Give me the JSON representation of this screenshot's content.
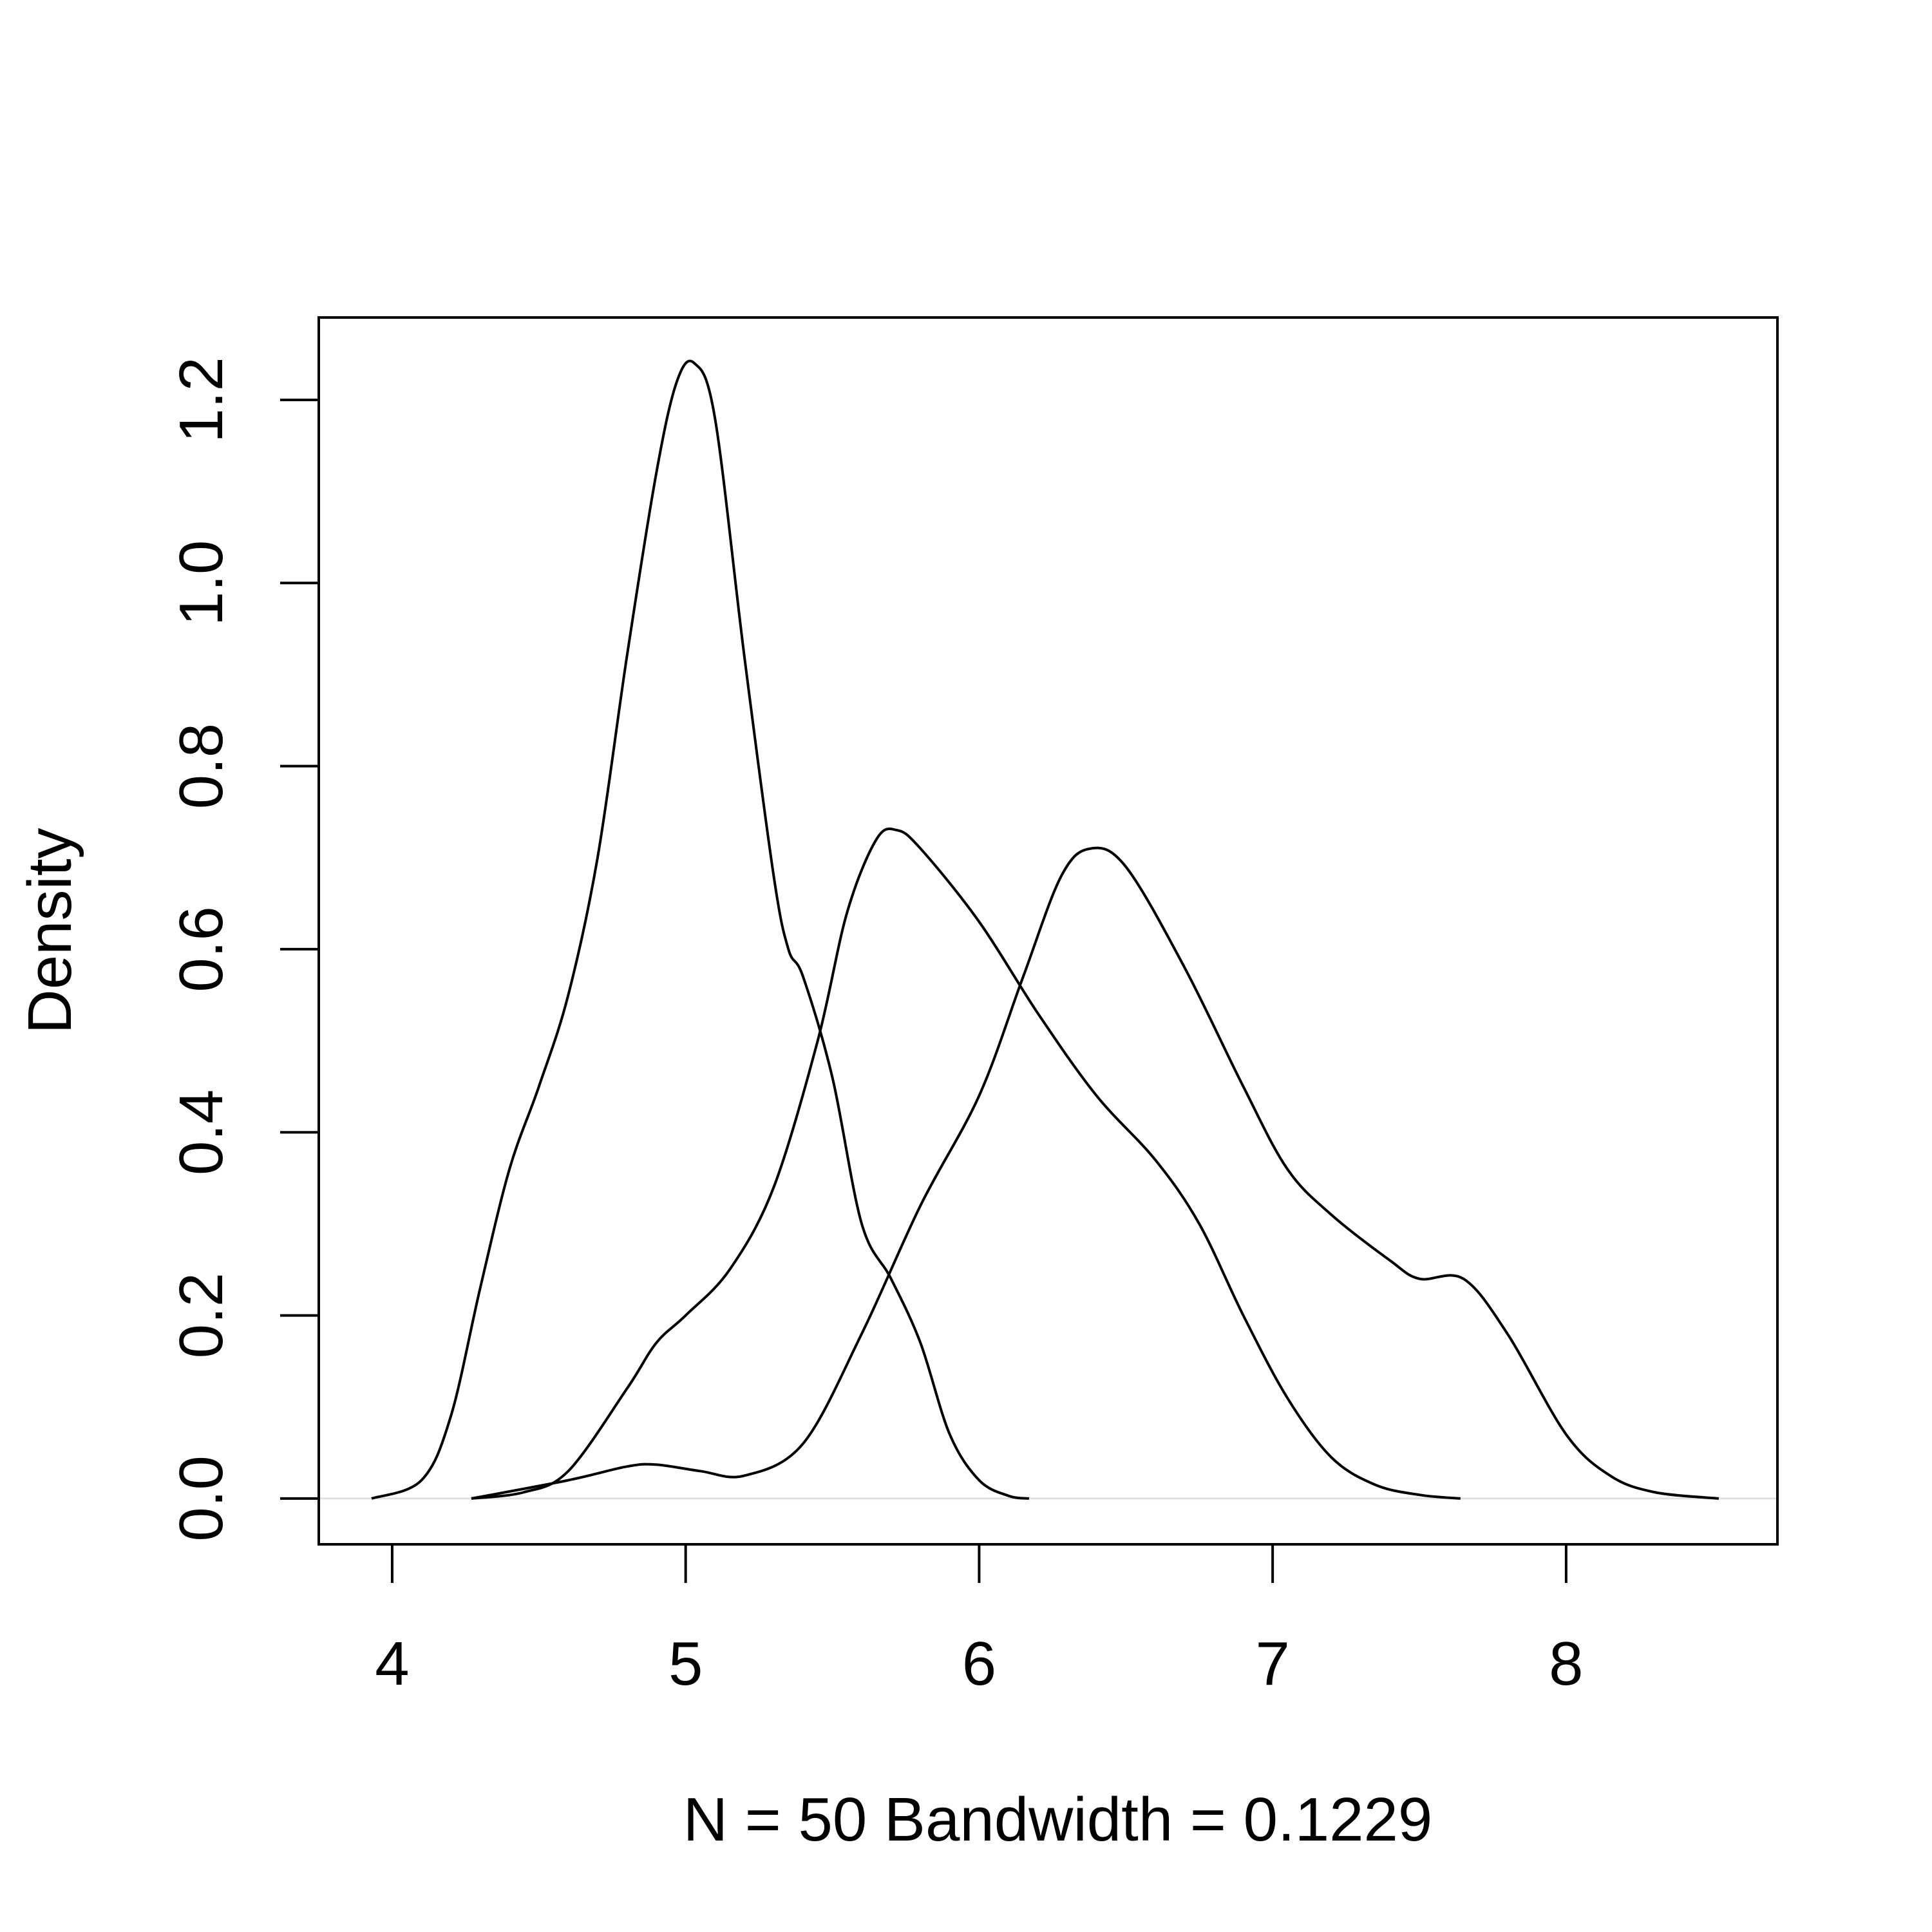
{
  "chart_data": {
    "type": "line",
    "title": "",
    "xlabel": "N = 50   Bandwidth = 0.1229",
    "ylabel": "Density",
    "xlim": [
      3.75,
      8.72
    ],
    "ylim": [
      -0.05,
      1.29
    ],
    "xticks": [
      4,
      5,
      6,
      7,
      8
    ],
    "yticks": [
      0.0,
      0.2,
      0.4,
      0.6,
      0.8,
      1.0,
      1.2
    ],
    "xtick_labels": [
      "4",
      "5",
      "6",
      "7",
      "8"
    ],
    "ytick_labels": [
      "0.0",
      "0.2",
      "0.4",
      "0.6",
      "0.8",
      "1.0",
      "1.2"
    ],
    "grid": false,
    "legend": false,
    "zero_line": true,
    "line_color": "#000000",
    "series": [
      {
        "points": [
          [
            3.93,
            0.0
          ],
          [
            4.1,
            0.02
          ],
          [
            4.2,
            0.09
          ],
          [
            4.3,
            0.23
          ],
          [
            4.4,
            0.36
          ],
          [
            4.5,
            0.45
          ],
          [
            4.6,
            0.55
          ],
          [
            4.7,
            0.7
          ],
          [
            4.8,
            0.92
          ],
          [
            4.9,
            1.12
          ],
          [
            4.97,
            1.22
          ],
          [
            5.03,
            1.24
          ],
          [
            5.1,
            1.18
          ],
          [
            5.2,
            0.92
          ],
          [
            5.3,
            0.68
          ],
          [
            5.35,
            0.6
          ],
          [
            5.4,
            0.57
          ],
          [
            5.5,
            0.46
          ],
          [
            5.6,
            0.3
          ],
          [
            5.7,
            0.24
          ],
          [
            5.8,
            0.17
          ],
          [
            5.9,
            0.07
          ],
          [
            6.0,
            0.02
          ],
          [
            6.1,
            0.003
          ],
          [
            6.17,
            0.0
          ]
        ]
      },
      {
        "points": [
          [
            4.27,
            0.0
          ],
          [
            4.45,
            0.007
          ],
          [
            4.6,
            0.03
          ],
          [
            4.8,
            0.12
          ],
          [
            4.9,
            0.17
          ],
          [
            5.0,
            0.2
          ],
          [
            5.15,
            0.25
          ],
          [
            5.3,
            0.34
          ],
          [
            5.45,
            0.5
          ],
          [
            5.55,
            0.64
          ],
          [
            5.65,
            0.72
          ],
          [
            5.72,
            0.73
          ],
          [
            5.8,
            0.71
          ],
          [
            6.0,
            0.63
          ],
          [
            6.2,
            0.53
          ],
          [
            6.4,
            0.44
          ],
          [
            6.6,
            0.37
          ],
          [
            6.75,
            0.3
          ],
          [
            6.9,
            0.2
          ],
          [
            7.05,
            0.11
          ],
          [
            7.2,
            0.045
          ],
          [
            7.35,
            0.015
          ],
          [
            7.5,
            0.004
          ],
          [
            7.64,
            0.0
          ]
        ]
      },
      {
        "points": [
          [
            4.27,
            0.0
          ],
          [
            4.6,
            0.02
          ],
          [
            4.8,
            0.035
          ],
          [
            4.9,
            0.037
          ],
          [
            5.05,
            0.03
          ],
          [
            5.2,
            0.025
          ],
          [
            5.4,
            0.06
          ],
          [
            5.6,
            0.18
          ],
          [
            5.8,
            0.32
          ],
          [
            6.0,
            0.44
          ],
          [
            6.15,
            0.57
          ],
          [
            6.28,
            0.68
          ],
          [
            6.38,
            0.71
          ],
          [
            6.5,
            0.69
          ],
          [
            6.7,
            0.58
          ],
          [
            6.9,
            0.45
          ],
          [
            7.05,
            0.36
          ],
          [
            7.2,
            0.31
          ],
          [
            7.4,
            0.26
          ],
          [
            7.5,
            0.24
          ],
          [
            7.65,
            0.24
          ],
          [
            7.8,
            0.18
          ],
          [
            8.0,
            0.07
          ],
          [
            8.15,
            0.025
          ],
          [
            8.3,
            0.007
          ],
          [
            8.52,
            0.0
          ]
        ]
      }
    ]
  }
}
